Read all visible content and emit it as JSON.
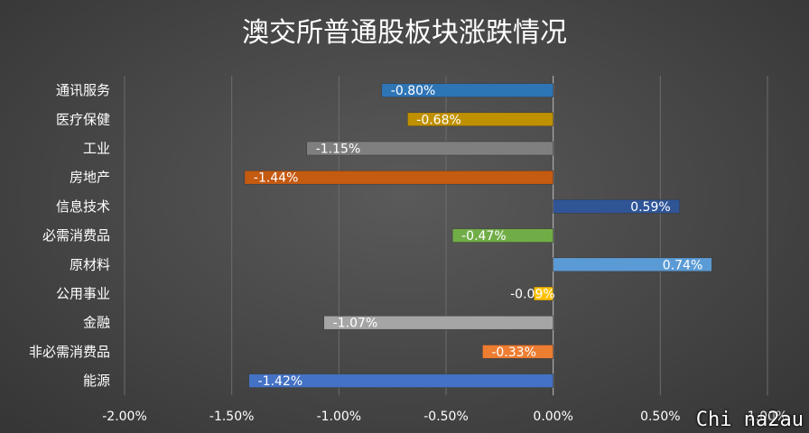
{
  "chart_data": {
    "type": "bar",
    "orientation": "horizontal",
    "title": "澳交所普通股板块涨跌情况",
    "categories": [
      "通讯服务",
      "医疗保健",
      "工业",
      "房地产",
      "信息技术",
      "必需消费品",
      "原材料",
      "公用事业",
      "金融",
      "非必需消费品",
      "能源"
    ],
    "values": [
      -0.8,
      -0.68,
      -1.15,
      -1.44,
      0.59,
      -0.47,
      0.74,
      -0.09,
      -1.07,
      -0.33,
      -1.42
    ],
    "data_labels": [
      "-0.80%",
      "-0.68%",
      "-1.15%",
      "-1.44%",
      "0.59%",
      "-0.47%",
      "0.74%",
      "-0.09%",
      "-1.07%",
      "-0.33%",
      "-1.42%"
    ],
    "colors": [
      "#2e75b6",
      "#bf9000",
      "#7f7f7f",
      "#c55a11",
      "#2f5597",
      "#70ad47",
      "#5b9bd5",
      "#ffc000",
      "#a5a5a5",
      "#ed7d31",
      "#4472c4"
    ],
    "xlim": [
      -2.0,
      1.0
    ],
    "xticks": [
      -2.0,
      -1.5,
      -1.0,
      -0.5,
      0.0,
      0.5,
      1.0
    ],
    "xtick_labels": [
      "-2.00%",
      "-1.50%",
      "-1.00%",
      "-0.50%",
      "0.00%",
      "0.50%",
      "1.00%"
    ],
    "grid": true,
    "legend": "none"
  },
  "watermark": "Chi na2au"
}
